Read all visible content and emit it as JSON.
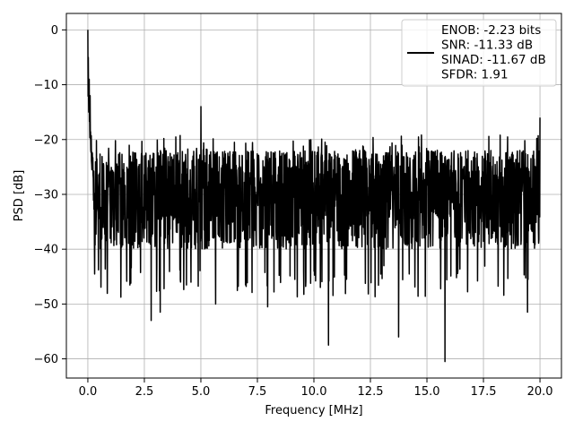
{
  "chart_data": {
    "type": "line",
    "title": "",
    "xlabel": "Frequency [MHz]",
    "ylabel": "PSD [dB]",
    "xlim": [
      -0.95,
      20.95
    ],
    "ylim": [
      -63.5,
      3.0
    ],
    "xticks": [
      0.0,
      2.5,
      5.0,
      7.5,
      10.0,
      12.5,
      15.0,
      17.5,
      20.0
    ],
    "xtick_labels": [
      "0.0",
      "2.5",
      "5.0",
      "7.5",
      "10.0",
      "12.5",
      "15.0",
      "17.5",
      "20.0"
    ],
    "yticks": [
      0,
      -10,
      -20,
      -30,
      -40,
      -50,
      -60
    ],
    "ytick_labels": [
      "0",
      "−10",
      "−20",
      "−30",
      "−40",
      "−50",
      "−60"
    ],
    "grid": true,
    "legend_position": "top-right",
    "legend_lines": [
      "ENOB: -2.23 bits",
      "SNR: -11.33 dB",
      "SINAD: -11.67 dB",
      "SFDR: 1.91"
    ],
    "series": [
      {
        "color": "#000000",
        "num_points": 2000,
        "x_range": [
          0.0,
          20.0
        ],
        "noise_floor_db": -30,
        "peak": {
          "x": 0.0,
          "y": 0.0
        },
        "envelope_upper_db": -22,
        "envelope_lower_db": -40,
        "spurs": [
          {
            "x": 0.02,
            "y": -5
          },
          {
            "x": 0.06,
            "y": -9
          },
          {
            "x": 0.1,
            "y": -12
          },
          {
            "x": 5.0,
            "y": -14
          },
          {
            "x": 20.0,
            "y": -16
          },
          {
            "x": 2.8,
            "y": -53
          },
          {
            "x": 3.2,
            "y": -51.5
          },
          {
            "x": 5.65,
            "y": -50
          },
          {
            "x": 7.95,
            "y": -50.5
          },
          {
            "x": 10.65,
            "y": -57.5
          },
          {
            "x": 13.75,
            "y": -56
          },
          {
            "x": 15.8,
            "y": -60.5
          },
          {
            "x": 19.45,
            "y": -51.5
          }
        ]
      }
    ]
  }
}
